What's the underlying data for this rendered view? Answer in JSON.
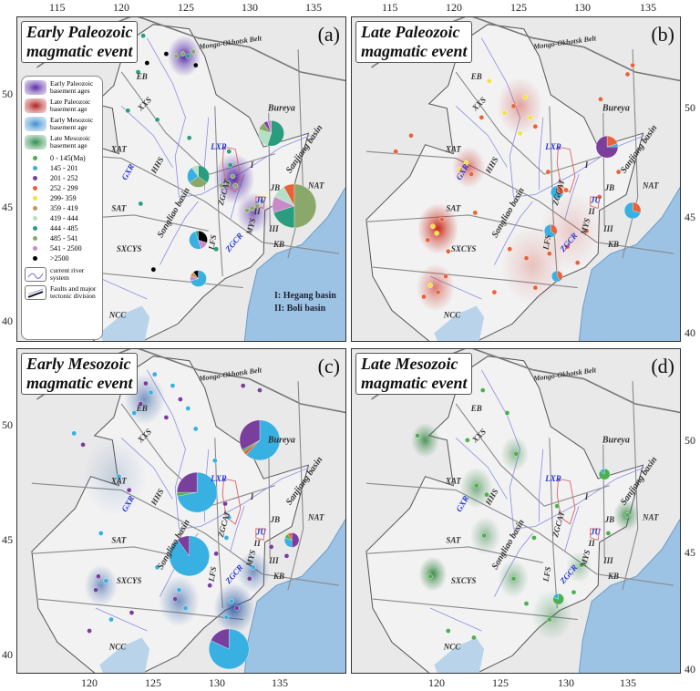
{
  "axes": {
    "top_lon_ticks": [
      "115",
      "120",
      "125",
      "130",
      "135"
    ],
    "bottom_lon_ticks": [
      "120",
      "125",
      "130",
      "135"
    ],
    "lat_ticks": [
      "50",
      "45",
      "40"
    ]
  },
  "age_classes": [
    {
      "label": "0 - 145(Ma)",
      "color": "#4caf50"
    },
    {
      "label": "145 - 201",
      "color": "#38b0e2"
    },
    {
      "label": "201 - 252",
      "color": "#7a3e9d"
    },
    {
      "label": "252 - 299",
      "color": "#e8623a"
    },
    {
      "label": "299- 359",
      "color": "#f2e33c"
    },
    {
      "label": "359 - 419",
      "color": "#c8955a"
    },
    {
      "label": "419 - 444",
      "color": "#b6e0c6"
    },
    {
      "label": "444 - 485",
      "color": "#2a9d7f"
    },
    {
      "label": "485 - 541",
      "color": "#8aa86a"
    },
    {
      "label": "541 - 2500",
      "color": "#c98ac9"
    },
    {
      "label": ">2500",
      "color": "#000000"
    }
  ],
  "legend": {
    "basement": [
      {
        "label": "Early Paleozoic basement ages",
        "color": "#5a2ea6"
      },
      {
        "label": "Late Paleozoic basement age",
        "color": "#b22222"
      },
      {
        "label": "Early Mesozoic basement age",
        "color": "#3f8fd0"
      },
      {
        "label": "Late Mesozoic basement age",
        "color": "#2f8f4f"
      }
    ],
    "river": "current river system",
    "faults": "Faults and major tectonic division"
  },
  "basin_notes": [
    "I: Hegang basin",
    "II: Boli basin"
  ],
  "map_labels": [
    "Mongo-Okhotsk Belt",
    "EB",
    "XXS",
    "XAT",
    "GXR",
    "HHS",
    "LXR",
    "Bureya",
    "NAT",
    "JB",
    "JU",
    "Sanjiang basin",
    "Songliao basin",
    "ZGCAT",
    "MYS",
    "ZGCR",
    "LFS",
    "KB",
    "SAT",
    "SXCYS",
    "NCC",
    "I",
    "II",
    "III"
  ],
  "panels": [
    {
      "letter": "(a)",
      "title_line1": "Early Paleozoic",
      "title_line2": "magmatic event",
      "density_color": "#4b1fa0",
      "points": [
        [
          121,
          51.8,
          10
        ],
        [
          122,
          51.4,
          10
        ],
        [
          123.5,
          51.8,
          10
        ],
        [
          125.8,
          51.3,
          10
        ],
        [
          121.3,
          51.0,
          7
        ],
        [
          121.7,
          52.6,
          7
        ],
        [
          124.3,
          51.7,
          8
        ],
        [
          124.8,
          51.8,
          8
        ],
        [
          125.2,
          51.7,
          7
        ],
        [
          125.6,
          51.9,
          8
        ],
        [
          125.3,
          48.1,
          7
        ],
        [
          122.8,
          48.9,
          7
        ],
        [
          120.5,
          49.3,
          7
        ],
        [
          128.4,
          47.5,
          7
        ],
        [
          128.5,
          46.9,
          7
        ],
        [
          128.7,
          46.4,
          8
        ],
        [
          128.3,
          46.1,
          8
        ],
        [
          128.9,
          46.0,
          8
        ],
        [
          127.8,
          46.0,
          8
        ],
        [
          130.2,
          45.0,
          8
        ],
        [
          130.6,
          45.1,
          8
        ],
        [
          131.0,
          45.3,
          8
        ],
        [
          129.8,
          44.9,
          8
        ],
        [
          127.4,
          43.2,
          7
        ],
        [
          122.5,
          42.3,
          10
        ],
        [
          121.5,
          45.2,
          7
        ]
      ],
      "pies": [
        {
          "slices": [
            [
              7,
              0.55
            ],
            [
              6,
              0.25
            ],
            [
              8,
              0.1
            ],
            [
              2,
              0.05
            ],
            [
              9,
              0.05
            ]
          ]
        },
        {
          "slices": [
            [
              7,
              0.35
            ],
            [
              8,
              0.3
            ],
            [
              1,
              0.25
            ],
            [
              6,
              0.1
            ]
          ]
        },
        {
          "slices": [
            [
              8,
              0.5
            ],
            [
              7,
              0.2
            ],
            [
              9,
              0.12
            ],
            [
              6,
              0.1
            ],
            [
              3,
              0.08
            ]
          ]
        },
        {
          "slices": [
            [
              10,
              0.3
            ],
            [
              9,
              0.15
            ],
            [
              1,
              0.5
            ],
            [
              7,
              0.05
            ]
          ]
        },
        {
          "slices": [
            [
              1,
              0.7
            ],
            [
              9,
              0.1
            ],
            [
              5,
              0.1
            ],
            [
              10,
              0.1
            ]
          ]
        }
      ]
    },
    {
      "letter": "(b)",
      "title_line1": "Late Paleozoic",
      "title_line2": "magmatic event",
      "density_color": "#c8200f",
      "points": [
        [
          118.5,
          43.9,
          4
        ],
        [
          118.2,
          44.2,
          4
        ],
        [
          118.9,
          44.5,
          3
        ],
        [
          117.8,
          43.6,
          3
        ],
        [
          119.4,
          43.1,
          3
        ],
        [
          118.0,
          41.6,
          4
        ],
        [
          118.6,
          41.3,
          3
        ],
        [
          117.5,
          41.1,
          3
        ],
        [
          119.2,
          42.0,
          3
        ],
        [
          120.3,
          46.7,
          4
        ],
        [
          120.8,
          47.0,
          4
        ],
        [
          121.2,
          46.5,
          3
        ],
        [
          122.6,
          50.6,
          4
        ],
        [
          123.8,
          49.2,
          4
        ],
        [
          124.5,
          49.5,
          3
        ],
        [
          125.4,
          49.9,
          4
        ],
        [
          125.8,
          49.0,
          4
        ],
        [
          126.2,
          48.6,
          3
        ],
        [
          125.0,
          48.3,
          4
        ],
        [
          122.0,
          49.0,
          3
        ],
        [
          116.5,
          48.2,
          3
        ],
        [
          115.3,
          47.5,
          3
        ],
        [
          121.5,
          44.8,
          3
        ],
        [
          124.2,
          43.2,
          3
        ],
        [
          125.5,
          42.8,
          3
        ],
        [
          127.3,
          43.0,
          3
        ],
        [
          128.7,
          43.3,
          3
        ],
        [
          129.5,
          42.6,
          3
        ],
        [
          130.2,
          44.0,
          3
        ],
        [
          126.2,
          41.5,
          3
        ],
        [
          123.0,
          41.3,
          3
        ],
        [
          127.2,
          46.6,
          3
        ],
        [
          128.6,
          45.8,
          3
        ],
        [
          131.3,
          49.8,
          3
        ],
        [
          133.4,
          50.9,
          3
        ],
        [
          133.8,
          51.3,
          3
        ],
        [
          132.7,
          46.6,
          3
        ],
        [
          131.2,
          45.5,
          3
        ]
      ],
      "pies": [
        {
          "slices": [
            [
              3,
              0.2
            ],
            [
              1,
              0.05
            ],
            [
              2,
              0.75
            ]
          ]
        },
        {
          "slices": [
            [
              3,
              0.3
            ],
            [
              1,
              0.7
            ]
          ]
        },
        {
          "slices": [
            [
              3,
              0.3
            ],
            [
              1,
              0.7
            ]
          ]
        },
        {
          "slices": [
            [
              3,
              0.35
            ],
            [
              1,
              0.65
            ]
          ]
        },
        {
          "slices": [
            [
              3,
              0.4
            ],
            [
              1,
              0.6
            ]
          ]
        }
      ]
    },
    {
      "letter": "(c)",
      "title_line1": "Early Mesozoic",
      "title_line2": "magmatic event",
      "density_color": "#1b4f9c",
      "points": [
        [
          121.9,
          51.9,
          2
        ],
        [
          122.3,
          51.5,
          1
        ],
        [
          121.5,
          51.0,
          2
        ],
        [
          121.0,
          50.6,
          1
        ],
        [
          122.6,
          52.3,
          1
        ],
        [
          124.0,
          51.8,
          1
        ],
        [
          124.6,
          51.2,
          2
        ],
        [
          125.2,
          50.8,
          1
        ],
        [
          123.5,
          50.4,
          2
        ],
        [
          125.8,
          49.9,
          1
        ],
        [
          116.3,
          49.7,
          1
        ],
        [
          117.0,
          49.2,
          2
        ],
        [
          119.8,
          47.8,
          1
        ],
        [
          120.6,
          47.2,
          2
        ],
        [
          118.4,
          45.3,
          1
        ],
        [
          118.2,
          43.4,
          2
        ],
        [
          118.8,
          43.2,
          1
        ],
        [
          118.0,
          42.8,
          2
        ],
        [
          117.5,
          41.0,
          2
        ],
        [
          119.2,
          41.5,
          1
        ],
        [
          120.8,
          41.8,
          2
        ],
        [
          122.8,
          43.8,
          1
        ],
        [
          124.5,
          42.8,
          1
        ],
        [
          124.2,
          42.4,
          2
        ],
        [
          125.0,
          42.0,
          1
        ],
        [
          126.9,
          43.0,
          2
        ],
        [
          128.6,
          42.3,
          1
        ],
        [
          129.0,
          42.0,
          2
        ],
        [
          128.2,
          41.6,
          1
        ],
        [
          130.0,
          43.3,
          2
        ],
        [
          130.3,
          43.8,
          1
        ],
        [
          128.2,
          45.1,
          1
        ],
        [
          127.4,
          44.4,
          2
        ],
        [
          128.1,
          46.6,
          2
        ],
        [
          128.4,
          46.0,
          1
        ],
        [
          132.9,
          44.3,
          2
        ],
        [
          131.7,
          44.7,
          2
        ],
        [
          127.3,
          48.5,
          1
        ],
        [
          129.5,
          51.8,
          2
        ],
        [
          130.8,
          51.6,
          2
        ]
      ],
      "pies": [
        {
          "slices": [
            [
              1,
              0.62
            ],
            [
              3,
              0.03
            ],
            [
              0,
              0.02
            ],
            [
              2,
              0.33
            ]
          ]
        },
        {
          "slices": [
            [
              1,
              0.72
            ],
            [
              0,
              0.03
            ],
            [
              2,
              0.25
            ]
          ]
        },
        {
          "slices": [
            [
              1,
              0.9
            ],
            [
              2,
              0.1
            ]
          ]
        },
        {
          "slices": [
            [
              1,
              0.82
            ],
            [
              2,
              0.18
            ]
          ]
        },
        {
          "slices": [
            [
              2,
              0.5
            ],
            [
              1,
              0.3
            ],
            [
              0,
              0.1
            ],
            [
              3,
              0.1
            ]
          ]
        }
      ]
    },
    {
      "letter": "(d)",
      "title_line1": "Late Mesozoic",
      "title_line2": "magmatic event",
      "density_color": "#1e7a2e",
      "points": [
        [
          118.0,
          43.4,
          0
        ],
        [
          117.0,
          49.6,
          0
        ],
        [
          120.9,
          49.4,
          0
        ],
        [
          122.1,
          51.6,
          0
        ],
        [
          124.0,
          50.6,
          0
        ],
        [
          124.7,
          48.8,
          0
        ],
        [
          121.6,
          47.4,
          0
        ],
        [
          122.4,
          47.0,
          0
        ],
        [
          122.2,
          45.2,
          0
        ],
        [
          124.5,
          43.3,
          0
        ],
        [
          125.5,
          42.2,
          0
        ],
        [
          127.3,
          41.5,
          0
        ],
        [
          129.2,
          42.7,
          0
        ],
        [
          129.8,
          43.9,
          0
        ],
        [
          133.4,
          46.1,
          0
        ],
        [
          131.9,
          45.3,
          0
        ],
        [
          126.1,
          45.1,
          0
        ],
        [
          127.9,
          46.5,
          0
        ],
        [
          119.4,
          41.0,
          0
        ],
        [
          121.4,
          40.7,
          0
        ]
      ],
      "pies": [
        {
          "slices": [
            [
              0,
              0.85
            ],
            [
              1,
              0.15
            ]
          ]
        },
        {
          "slices": [
            [
              0,
              0.8
            ],
            [
              1,
              0.2
            ]
          ]
        }
      ]
    }
  ]
}
